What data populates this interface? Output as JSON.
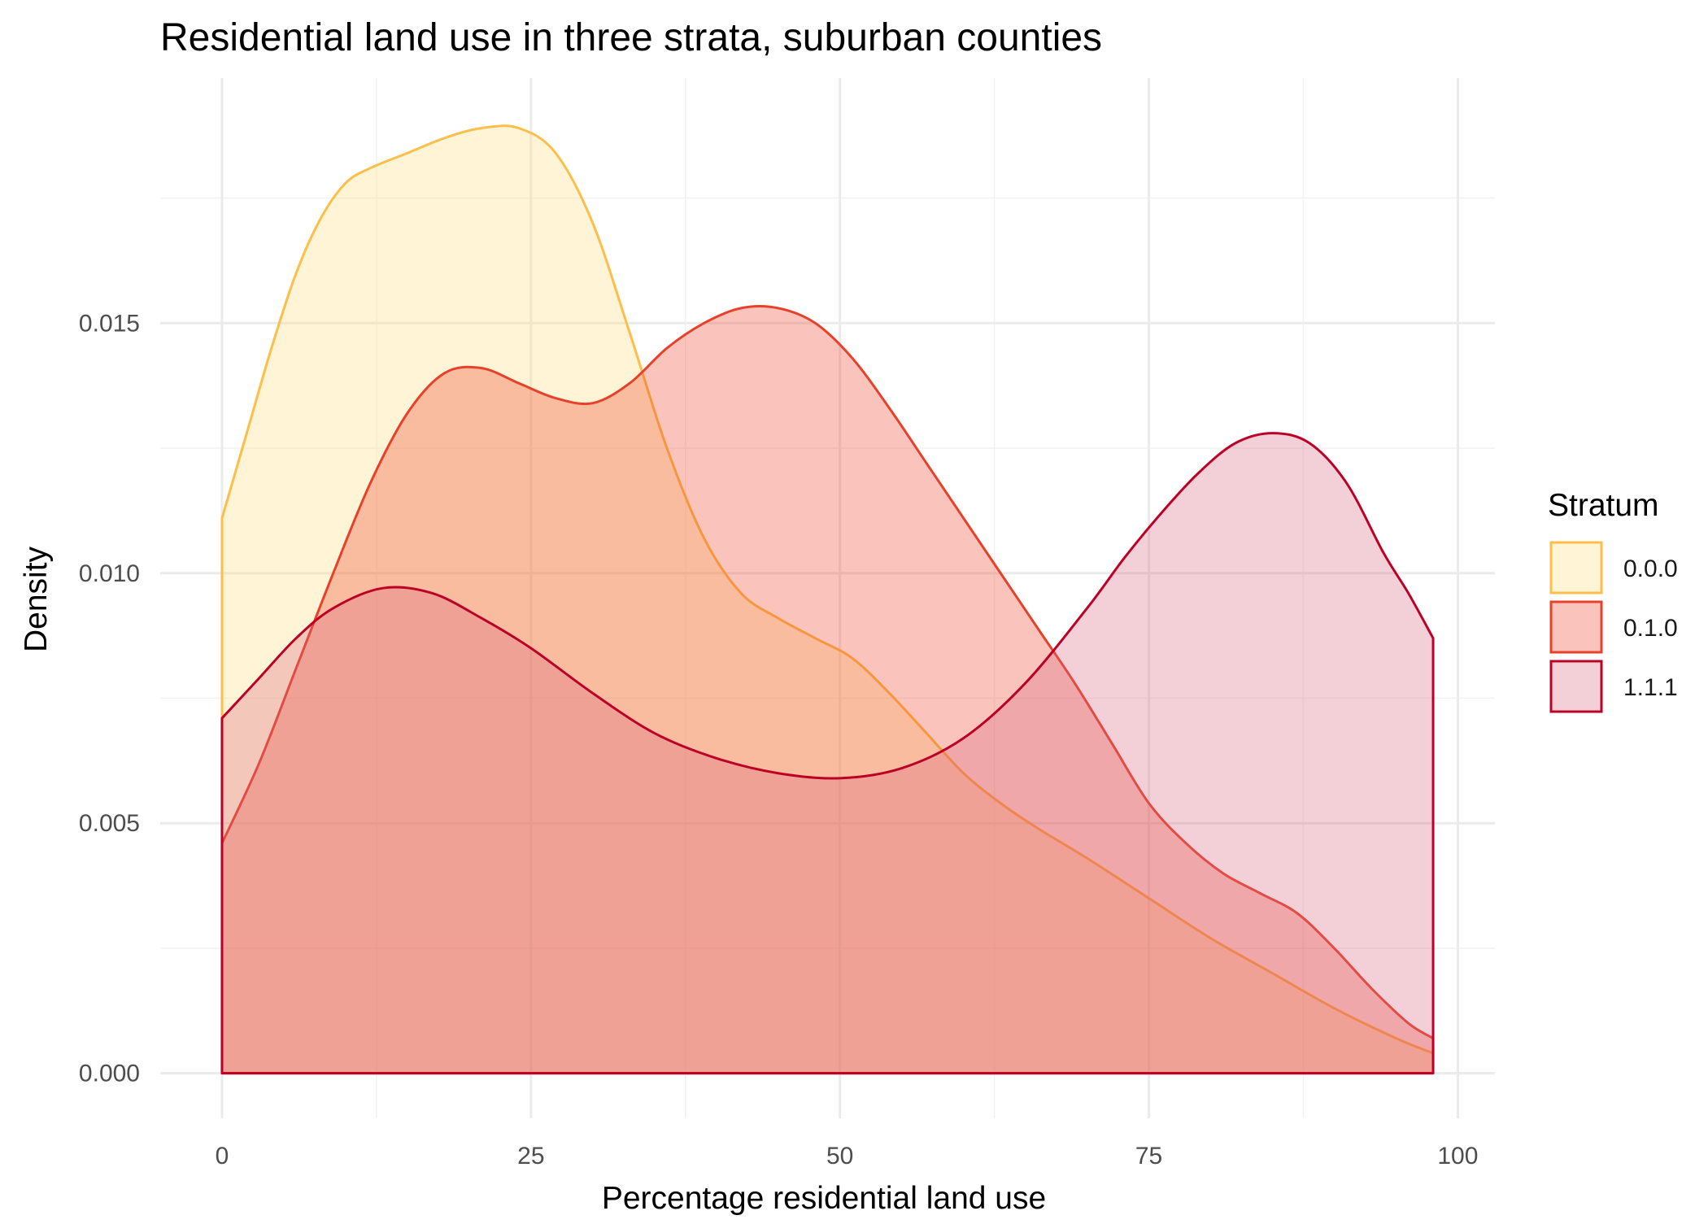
{
  "chart_data": {
    "type": "area",
    "title": "Residential land use in three strata, suburban counties",
    "xlabel": "Percentage residential land use",
    "ylabel": "Density",
    "xlim": [
      -5,
      103
    ],
    "ylim": [
      -0.0009,
      0.0199
    ],
    "x_ticks": [
      0,
      25,
      50,
      75,
      100
    ],
    "x_tick_labels": [
      "0",
      "25",
      "50",
      "75",
      "100"
    ],
    "y_ticks": [
      0,
      0.005,
      0.01,
      0.015
    ],
    "y_tick_labels": [
      "0.000",
      "0.005",
      "0.010",
      "0.015"
    ],
    "grid": true,
    "legend": {
      "title": "Stratum",
      "position": "right"
    },
    "series": [
      {
        "name": "0.0.0",
        "fill": "#fed976",
        "stroke": "#fdbe4a",
        "x": [
          0,
          2,
          4,
          6,
          8,
          10,
          12,
          15,
          18,
          21,
          24,
          27,
          30,
          33,
          36,
          39,
          42,
          45,
          48,
          51,
          54,
          57,
          60,
          63,
          66,
          70,
          75,
          80,
          85,
          90,
          95,
          98
        ],
        "y": [
          0.0111,
          0.0128,
          0.0145,
          0.016,
          0.0171,
          0.0178,
          0.0181,
          0.0184,
          0.0187,
          0.0189,
          0.0189,
          0.0184,
          0.017,
          0.0148,
          0.0125,
          0.0107,
          0.0096,
          0.0091,
          0.0087,
          0.0083,
          0.0076,
          0.0068,
          0.006,
          0.0054,
          0.0049,
          0.0043,
          0.0035,
          0.0027,
          0.002,
          0.0013,
          0.0007,
          0.0004
        ]
      },
      {
        "name": "0.1.0",
        "fill": "#f03b20",
        "stroke": "#e8412b",
        "x": [
          0,
          3,
          6,
          9,
          12,
          15,
          18,
          21,
          24,
          27,
          30,
          33,
          36,
          39,
          42,
          45,
          48,
          51,
          54,
          57,
          60,
          63,
          66,
          69,
          72,
          75,
          78,
          81,
          84,
          87,
          90,
          93,
          96,
          98
        ],
        "y": [
          0.0046,
          0.0062,
          0.0081,
          0.01,
          0.0118,
          0.0132,
          0.014,
          0.0141,
          0.0138,
          0.0135,
          0.0134,
          0.0138,
          0.0145,
          0.015,
          0.0153,
          0.0153,
          0.015,
          0.0143,
          0.0133,
          0.0122,
          0.0111,
          0.01,
          0.0089,
          0.0078,
          0.0066,
          0.0054,
          0.0046,
          0.004,
          0.0036,
          0.0032,
          0.0025,
          0.0017,
          0.001,
          0.0007
        ]
      },
      {
        "name": "1.1.1",
        "fill": "#d6647f",
        "stroke": "#bd0026",
        "x": [
          0,
          3,
          6,
          9,
          13,
          17,
          21,
          25,
          30,
          35,
          40,
          45,
          50,
          55,
          60,
          65,
          70,
          73,
          76,
          79,
          82,
          85,
          88,
          91,
          94,
          96,
          98
        ],
        "y": [
          0.0071,
          0.0079,
          0.0087,
          0.0093,
          0.0097,
          0.0096,
          0.0091,
          0.0085,
          0.0076,
          0.0068,
          0.0063,
          0.006,
          0.0059,
          0.0061,
          0.0067,
          0.0078,
          0.0093,
          0.0103,
          0.0112,
          0.012,
          0.0126,
          0.0128,
          0.0126,
          0.0118,
          0.0104,
          0.0096,
          0.0087
        ]
      }
    ]
  }
}
